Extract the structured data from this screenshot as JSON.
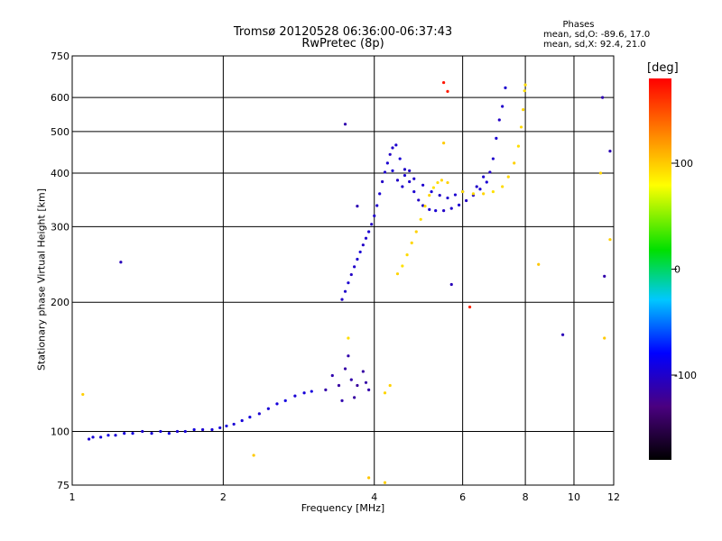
{
  "chart_data": {
    "type": "scatter",
    "title_line1": "Tromsø 20120528 06:36:00-06:37:43",
    "title_line2": "RwPretec (8p)",
    "stats": {
      "header": "Phases",
      "line_o": "mean, sd,O: -89.6, 17.0",
      "line_x": "mean, sd,X:  92.4, 21.0"
    },
    "xlabel": "Frequency [MHz]",
    "ylabel": "Stationary phase Virtual Height [km]",
    "xscale": "log",
    "yscale": "log",
    "xlim": [
      1,
      12
    ],
    "ylim": [
      75,
      750
    ],
    "x_ticks": [
      "1",
      "2",
      "4",
      "6",
      "8",
      "10",
      "12"
    ],
    "x_tick_values": [
      1,
      2,
      4,
      6,
      8,
      10,
      12
    ],
    "y_ticks": [
      "750",
      "600",
      "500",
      "400",
      "300",
      "200",
      "100",
      "75"
    ],
    "y_tick_values": [
      750,
      600,
      500,
      400,
      300,
      200,
      100,
      75
    ],
    "grid": true,
    "colorbar": {
      "label": "[deg]",
      "range": [
        -180,
        180
      ],
      "ticks": [
        "100",
        "0",
        "-100"
      ],
      "tick_values": [
        100,
        0,
        -100
      ]
    },
    "series": [
      {
        "phase": -95,
        "points": [
          [
            1.08,
            96
          ],
          [
            1.1,
            97
          ],
          [
            1.14,
            97
          ],
          [
            1.18,
            98
          ],
          [
            1.22,
            98
          ],
          [
            1.27,
            99
          ],
          [
            1.32,
            99
          ],
          [
            1.38,
            100
          ],
          [
            1.44,
            99
          ],
          [
            1.5,
            100
          ],
          [
            1.56,
            99
          ],
          [
            1.62,
            100
          ],
          [
            1.68,
            100
          ],
          [
            1.75,
            101
          ],
          [
            1.82,
            101
          ],
          [
            1.9,
            101
          ],
          [
            1.97,
            102
          ],
          [
            2.03,
            103
          ],
          [
            2.1,
            104
          ],
          [
            2.18,
            106
          ],
          [
            2.26,
            108
          ],
          [
            2.36,
            110
          ],
          [
            2.46,
            113
          ],
          [
            2.56,
            116
          ],
          [
            2.66,
            118
          ],
          [
            2.78,
            121
          ],
          [
            2.9,
            123
          ],
          [
            3.0,
            124
          ]
        ]
      },
      {
        "phase": -115,
        "points": [
          [
            3.2,
            125
          ],
          [
            3.3,
            135
          ],
          [
            3.4,
            128
          ],
          [
            3.5,
            140
          ],
          [
            3.6,
            132
          ],
          [
            3.7,
            128
          ],
          [
            3.8,
            138
          ],
          [
            3.9,
            125
          ],
          [
            3.45,
            118
          ],
          [
            3.65,
            120
          ],
          [
            3.85,
            130
          ],
          [
            3.55,
            150
          ]
        ]
      },
      {
        "phase": -100,
        "points": [
          [
            3.45,
            203
          ],
          [
            3.5,
            212
          ],
          [
            3.55,
            222
          ],
          [
            3.6,
            232
          ],
          [
            3.65,
            242
          ],
          [
            3.7,
            252
          ],
          [
            3.75,
            262
          ],
          [
            3.8,
            272
          ],
          [
            3.85,
            282
          ],
          [
            3.9,
            292
          ],
          [
            3.95,
            304
          ],
          [
            4.0,
            318
          ],
          [
            4.05,
            336
          ],
          [
            4.1,
            358
          ],
          [
            4.15,
            382
          ],
          [
            4.2,
            402
          ],
          [
            4.25,
            422
          ],
          [
            4.3,
            442
          ],
          [
            4.35,
            458
          ],
          [
            4.42,
            465
          ],
          [
            4.5,
            432
          ],
          [
            4.6,
            408
          ],
          [
            4.7,
            382
          ],
          [
            4.8,
            362
          ],
          [
            4.9,
            346
          ],
          [
            5.0,
            336
          ],
          [
            5.15,
            329
          ],
          [
            5.3,
            327
          ],
          [
            5.5,
            327
          ],
          [
            5.7,
            331
          ],
          [
            5.9,
            337
          ],
          [
            6.1,
            345
          ],
          [
            6.3,
            355
          ],
          [
            6.5,
            367
          ],
          [
            6.7,
            381
          ],
          [
            6.8,
            402
          ],
          [
            6.9,
            432
          ],
          [
            7.0,
            482
          ],
          [
            7.1,
            532
          ],
          [
            7.2,
            572
          ],
          [
            7.3,
            632
          ],
          [
            4.35,
            405
          ],
          [
            4.45,
            385
          ],
          [
            4.55,
            372
          ],
          [
            4.6,
            395
          ],
          [
            4.7,
            405
          ],
          [
            4.8,
            388
          ],
          [
            5.0,
            375
          ],
          [
            5.2,
            362
          ],
          [
            5.4,
            355
          ],
          [
            5.6,
            350
          ],
          [
            5.8,
            356
          ],
          [
            6.0,
            362
          ],
          [
            6.4,
            372
          ],
          [
            6.6,
            392
          ]
        ]
      },
      {
        "phase": 95,
        "points": [
          [
            4.45,
            233
          ],
          [
            4.55,
            243
          ],
          [
            4.65,
            258
          ],
          [
            4.75,
            275
          ],
          [
            4.85,
            292
          ],
          [
            4.95,
            312
          ],
          [
            5.05,
            335
          ],
          [
            5.15,
            355
          ],
          [
            5.25,
            370
          ],
          [
            5.35,
            380
          ],
          [
            5.45,
            385
          ],
          [
            5.6,
            380
          ],
          [
            6.0,
            362
          ],
          [
            6.3,
            358
          ],
          [
            6.6,
            358
          ],
          [
            6.9,
            362
          ],
          [
            7.2,
            372
          ],
          [
            7.4,
            392
          ],
          [
            7.6,
            422
          ],
          [
            7.75,
            462
          ],
          [
            7.85,
            512
          ],
          [
            7.92,
            562
          ],
          [
            7.97,
            622
          ],
          [
            8.0,
            642
          ],
          [
            4.2,
            123
          ],
          [
            4.3,
            128
          ],
          [
            3.55,
            165
          ]
        ]
      },
      {
        "phase": 100,
        "points": [
          [
            1.05,
            122
          ],
          [
            2.3,
            88
          ],
          [
            3.9,
            78
          ],
          [
            4.2,
            76
          ],
          [
            5.5,
            470
          ],
          [
            8.5,
            245
          ],
          [
            11.3,
            400
          ],
          [
            11.8,
            280
          ],
          [
            11.5,
            165
          ]
        ]
      },
      {
        "phase": -110,
        "points": [
          [
            1.25,
            248
          ],
          [
            3.5,
            520
          ],
          [
            3.7,
            335
          ],
          [
            9.5,
            168
          ],
          [
            11.5,
            230
          ],
          [
            11.4,
            600
          ],
          [
            11.8,
            450
          ],
          [
            5.7,
            220
          ]
        ]
      },
      {
        "phase": 170,
        "points": [
          [
            5.6,
            620
          ],
          [
            5.5,
            650
          ],
          [
            6.2,
            195
          ]
        ]
      }
    ]
  }
}
